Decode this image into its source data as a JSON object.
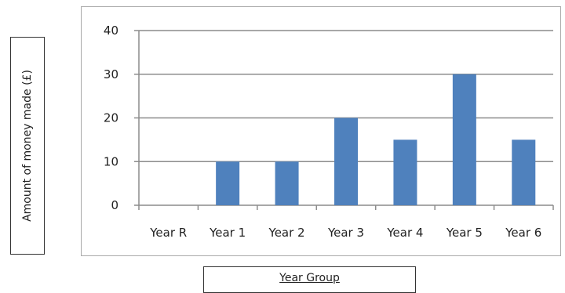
{
  "chart_data": {
    "type": "bar",
    "categories": [
      "Year R",
      "Year 1",
      "Year 2",
      "Year 3",
      "Year 4",
      "Year 5",
      "Year 6"
    ],
    "values": [
      0,
      10,
      10,
      20,
      15,
      30,
      15
    ],
    "xlabel": "Year Group",
    "ylabel": "Amount of money made (£)",
    "ylim": [
      0,
      40
    ],
    "yticks": [
      0,
      10,
      20,
      30,
      40
    ],
    "grid": true,
    "bar_color": "#4f81bd",
    "grid_color": "#8c8c8c"
  }
}
